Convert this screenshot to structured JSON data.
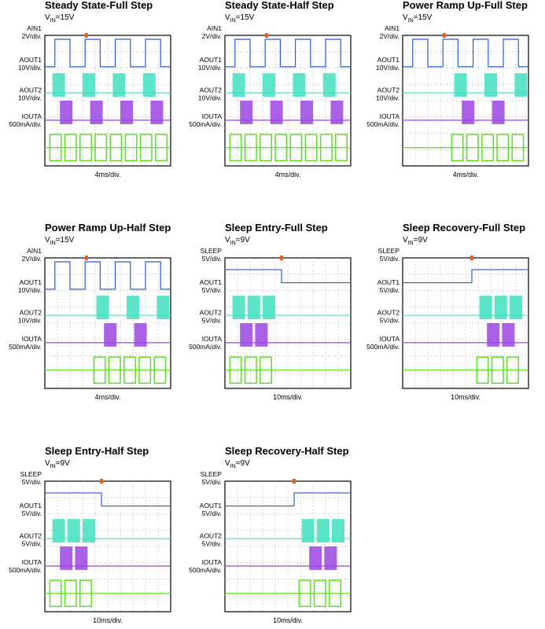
{
  "panels": [
    {
      "title": "Steady State-Full Step",
      "vin": {
        "symbol": "V",
        "subscript": "IN",
        "value": "=15V"
      },
      "channels": [
        {
          "name": "AIN1",
          "scale": "2V/div."
        },
        {
          "name": "AOUT1",
          "scale": "10V/div."
        },
        {
          "name": "AOUT2",
          "scale": "10V/div."
        },
        {
          "name": "IOUTA",
          "scale": "500mA/div."
        }
      ],
      "time_scale": "4ms/div."
    },
    {
      "title": "Steady State-Half Step",
      "vin": {
        "symbol": "V",
        "subscript": "IN",
        "value": "=15V"
      },
      "channels": [
        {
          "name": "AIN1",
          "scale": "2V/div."
        },
        {
          "name": "AOUT1",
          "scale": "10V/div."
        },
        {
          "name": "AOUT2",
          "scale": "10V/div."
        },
        {
          "name": "IOUTA",
          "scale": "500mA/div."
        }
      ],
      "time_scale": "4ms/div."
    },
    {
      "title": "Power Ramp Up-Full Step",
      "vin": {
        "symbol": "V",
        "subscript": "IN",
        "value": "=15V"
      },
      "channels": [
        {
          "name": "AIN1",
          "scale": "2V/div."
        },
        {
          "name": "AOUT1",
          "scale": "10V/div."
        },
        {
          "name": "AOUT2",
          "scale": "10V/div."
        },
        {
          "name": "IOUTA",
          "scale": "500mA/div."
        }
      ],
      "time_scale": "4ms/div."
    },
    {
      "title": "Power Ramp Up-Half Step",
      "vin": {
        "symbol": "V",
        "subscript": "IN",
        "value": "=15V"
      },
      "channels": [
        {
          "name": "AIN1",
          "scale": "2V/div."
        },
        {
          "name": "AOUT1",
          "scale": "10V/div."
        },
        {
          "name": "AOUT2",
          "scale": "10V/div."
        },
        {
          "name": "IOUTA",
          "scale": "500mA/div."
        }
      ],
      "time_scale": "4ms/div."
    },
    {
      "title": "Sleep Entry-Full Step",
      "vin": {
        "symbol": "V",
        "subscript": "IN",
        "value": "=9V"
      },
      "channels": [
        {
          "name": "SLEEP",
          "scale": "5V/div."
        },
        {
          "name": "AOUT1",
          "scale": "5V/div."
        },
        {
          "name": "AOUT2",
          "scale": "5V/div."
        },
        {
          "name": "IOUTA",
          "scale": "500mA/div."
        }
      ],
      "time_scale": "10ms/div."
    },
    {
      "title": "Sleep Recovery-Full Step",
      "vin": {
        "symbol": "V",
        "subscript": "IN",
        "value": "=9V"
      },
      "channels": [
        {
          "name": "SLEEP",
          "scale": "5V/div."
        },
        {
          "name": "AOUT1",
          "scale": "5V/div."
        },
        {
          "name": "AOUT2",
          "scale": "5V/div."
        },
        {
          "name": "IOUTA",
          "scale": "500mA/div."
        }
      ],
      "time_scale": "10ms/div."
    },
    {
      "title": "Sleep Entry-Half Step",
      "vin": {
        "symbol": "V",
        "subscript": "IN",
        "value": "=9V"
      },
      "channels": [
        {
          "name": "SLEEP",
          "scale": "5V/div."
        },
        {
          "name": "AOUT1",
          "scale": "5V/div."
        },
        {
          "name": "AOUT2",
          "scale": "5V/div."
        },
        {
          "name": "IOUTA",
          "scale": "500mA/div."
        }
      ],
      "time_scale": "10ms/div."
    },
    {
      "title": "Sleep Recovery-Half Step",
      "vin": {
        "symbol": "V",
        "subscript": "IN",
        "value": "=9V"
      },
      "channels": [
        {
          "name": "SLEEP",
          "scale": "5V/div."
        },
        {
          "name": "AOUT1",
          "scale": "5V/div."
        },
        {
          "name": "AOUT2",
          "scale": "5V/div."
        },
        {
          "name": "IOUTA",
          "scale": "500mA/div."
        }
      ],
      "time_scale": "10ms/div."
    }
  ]
}
